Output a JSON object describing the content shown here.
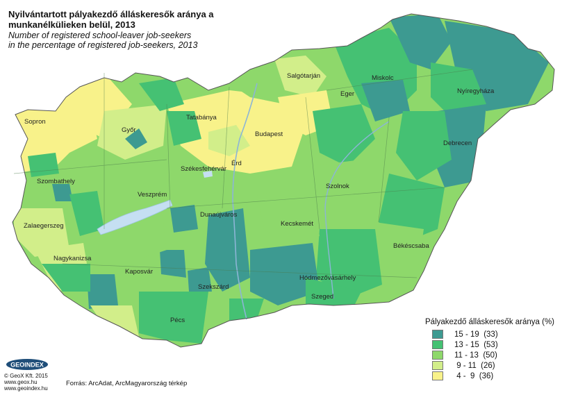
{
  "title": {
    "hu_line1": "Nyilvántartott pályakezdő álláskeresők aránya a",
    "hu_line2": "munkanélkülieken belül, 2013",
    "en_line1": "Number of registered school-leaver job-seekers",
    "en_line2": "in the percentage of registered job-seekers, 2013"
  },
  "legend": {
    "title": "Pályakezdő álláskeresők aránya (%)",
    "classes": [
      {
        "label": "15 - 19  (33)",
        "color": "#3d9a91"
      },
      {
        "label": "13 - 15  (53)",
        "color": "#45c173"
      },
      {
        "label": "11 - 13  (50)",
        "color": "#8ed86b"
      },
      {
        "label": " 9 - 11  (26)",
        "color": "#d2ee8a"
      },
      {
        "label": " 4 -  9  (36)",
        "color": "#f8f28a"
      }
    ]
  },
  "cities": [
    {
      "name": "Salgótarján"
    },
    {
      "name": "Miskolc"
    },
    {
      "name": "Nyíregyháza"
    },
    {
      "name": "Eger"
    },
    {
      "name": "Tatabánya"
    },
    {
      "name": "Sopron"
    },
    {
      "name": "Győr"
    },
    {
      "name": "Budapest"
    },
    {
      "name": "Debrecen"
    },
    {
      "name": "Székesfehérvár"
    },
    {
      "name": "Érd"
    },
    {
      "name": "Szombathely"
    },
    {
      "name": "Veszprém"
    },
    {
      "name": "Szolnok"
    },
    {
      "name": "Dunaújváros"
    },
    {
      "name": "Kecskemét"
    },
    {
      "name": "Zalaegerszeg"
    },
    {
      "name": "Békéscsaba"
    },
    {
      "name": "Nagykanizsa"
    },
    {
      "name": "Kaposvár"
    },
    {
      "name": "Hódmezővásárhely"
    },
    {
      "name": "Szekszárd"
    },
    {
      "name": "Szeged"
    },
    {
      "name": "Pécs"
    }
  ],
  "logo": {
    "text": "GEOINDEX"
  },
  "credits": {
    "line1": "© GeoX Kft. 2015",
    "line2": "www.geox.hu",
    "line3": "www.geoindex.hu"
  },
  "source": "Forrás: ArcAdat, ArcMagyarország térkép"
}
